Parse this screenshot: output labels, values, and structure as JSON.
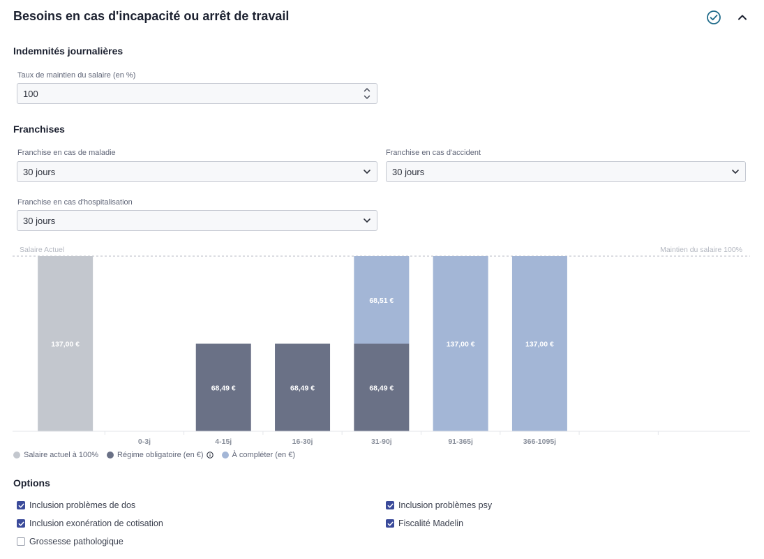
{
  "header": {
    "title": "Besoins en cas d'incapacité ou arrêt de travail"
  },
  "indemnites": {
    "heading": "Indemnités journalières",
    "taux_label": "Taux de maintien du salaire (en %)",
    "taux_value": "100"
  },
  "franchises": {
    "heading": "Franchises",
    "maladie_label": "Franchise en cas de maladie",
    "maladie_value": "30 jours",
    "accident_label": "Franchise en cas d'accident",
    "accident_value": "30 jours",
    "hospitalisation_label": "Franchise en cas d'hospitalisation",
    "hospitalisation_value": "30 jours"
  },
  "chart_data": {
    "type": "bar",
    "left_label": "Salaire Actuel",
    "right_label": "Maintien du salaire 100%",
    "categories": [
      "",
      "0-3j",
      "4-15j",
      "16-30j",
      "31-90j",
      "91-365j",
      "366-1095j",
      "",
      ""
    ],
    "ymax": 137,
    "series": [
      {
        "name": "Salaire actuel à 100%",
        "color": "#c3c7ce",
        "values": [
          137,
          0,
          0,
          0,
          0,
          0,
          0,
          0,
          0
        ],
        "labels": [
          "137,00 €",
          "",
          "",
          "",
          "",
          "",
          "",
          "",
          ""
        ]
      },
      {
        "name": "Régime obligatoire (en €)",
        "color": "#6a7186",
        "values": [
          0,
          0,
          68.49,
          68.49,
          68.49,
          0,
          0,
          0,
          0
        ],
        "labels": [
          "",
          "",
          "68,49 €",
          "68,49 €",
          "68,49 €",
          "",
          "",
          "",
          ""
        ]
      },
      {
        "name": "À compléter (en €)",
        "color": "#a3b6d6",
        "values": [
          0,
          0,
          0,
          0,
          68.51,
          137,
          137,
          0,
          0
        ],
        "labels": [
          "",
          "",
          "",
          "",
          "68,51 €",
          "137,00 €",
          "137,00 €",
          "",
          ""
        ]
      }
    ]
  },
  "options": {
    "heading": "Options",
    "items": [
      {
        "label": "Inclusion problèmes de dos",
        "checked": true
      },
      {
        "label": "Inclusion problèmes psy",
        "checked": true
      },
      {
        "label": "Inclusion exonération de cotisation",
        "checked": true
      },
      {
        "label": "Fiscalité Madelin",
        "checked": true
      },
      {
        "label": "Grossesse pathologique",
        "checked": false
      }
    ]
  },
  "icons": {
    "check": "check-circle-icon",
    "collapse": "chevron-up-icon",
    "dropdown": "chevron-down-icon",
    "info": "info-icon"
  }
}
